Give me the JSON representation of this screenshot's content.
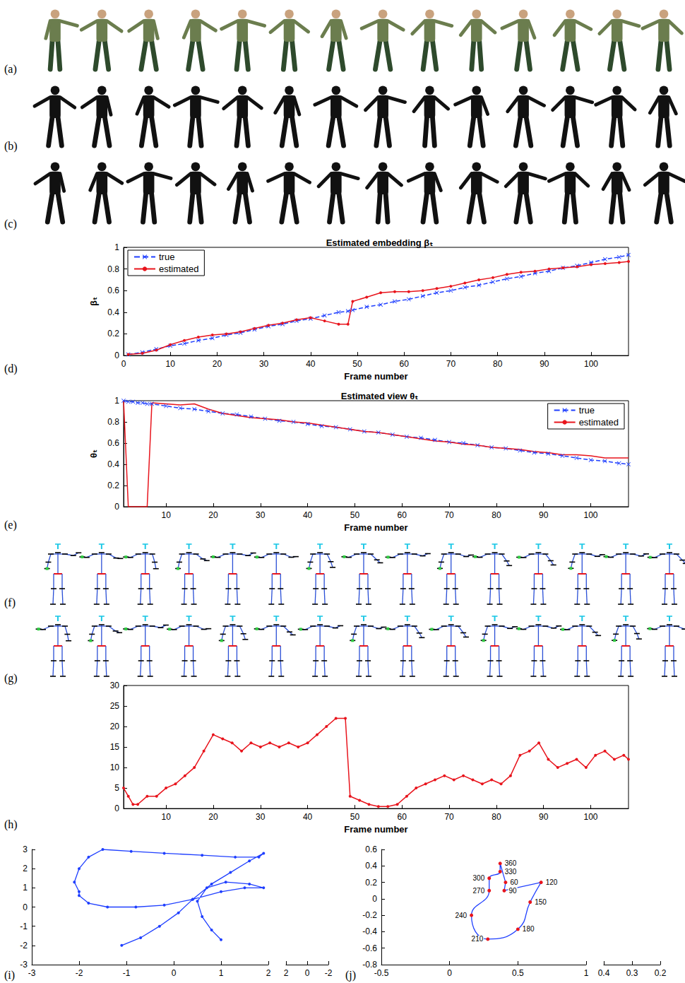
{
  "figure": {
    "image_rows": [
      {
        "panel_label": "(a)",
        "kind": "color",
        "frames": 14
      },
      {
        "panel_label": "(b)",
        "kind": "silhouette",
        "frames": 14
      },
      {
        "panel_label": "(c)",
        "kind": "silhouette",
        "frames": 14
      }
    ],
    "skeleton_rows": [
      {
        "panel_label": "(f)",
        "frames": 15
      },
      {
        "panel_label": "(g)",
        "frames": 15
      }
    ]
  },
  "chart_data": [
    {
      "type": "line",
      "panel_label": "(d)",
      "title": "Estimated embedding βₜ",
      "x_label": "Frame number",
      "y_label": "βₜ",
      "x": [
        1,
        4,
        7,
        10,
        13,
        16,
        19,
        22,
        25,
        28,
        31,
        34,
        37,
        40,
        43,
        46,
        48,
        49,
        52,
        55,
        58,
        61,
        64,
        67,
        70,
        73,
        76,
        79,
        82,
        85,
        88,
        91,
        94,
        97,
        100,
        103,
        106,
        108
      ],
      "series": [
        {
          "name": "true",
          "color": "#1f3fff",
          "line_style": "dashed",
          "marker": "x",
          "values": [
            0.01,
            0.03,
            0.06,
            0.09,
            0.11,
            0.14,
            0.16,
            0.19,
            0.21,
            0.24,
            0.27,
            0.29,
            0.32,
            0.34,
            0.37,
            0.4,
            0.41,
            0.42,
            0.45,
            0.47,
            0.5,
            0.52,
            0.55,
            0.58,
            0.6,
            0.63,
            0.65,
            0.68,
            0.71,
            0.73,
            0.76,
            0.78,
            0.81,
            0.83,
            0.86,
            0.89,
            0.91,
            0.93
          ]
        },
        {
          "name": "estimated",
          "color": "#e8141c",
          "line_style": "solid",
          "marker": "circle",
          "values": [
            0.01,
            0.02,
            0.05,
            0.1,
            0.14,
            0.17,
            0.19,
            0.2,
            0.22,
            0.25,
            0.28,
            0.3,
            0.33,
            0.35,
            0.32,
            0.29,
            0.29,
            0.5,
            0.54,
            0.58,
            0.59,
            0.59,
            0.6,
            0.62,
            0.64,
            0.67,
            0.7,
            0.72,
            0.75,
            0.77,
            0.78,
            0.8,
            0.81,
            0.82,
            0.84,
            0.85,
            0.86,
            0.87
          ]
        }
      ],
      "xlim": [
        0,
        108
      ],
      "xticks": [
        0,
        10,
        20,
        30,
        40,
        50,
        60,
        70,
        80,
        90,
        100
      ],
      "ylim": [
        0,
        1
      ],
      "yticks": [
        0,
        0.2,
        0.4,
        0.6,
        0.8,
        1
      ],
      "legend": "upper left",
      "grid": false
    },
    {
      "type": "line",
      "panel_label": "(e)",
      "title": "Estimated view θₜ",
      "x_label": "Frame number",
      "y_label": "θₜ",
      "x": [
        1,
        2,
        3,
        4,
        5,
        6,
        7,
        10,
        13,
        16,
        19,
        22,
        25,
        28,
        31,
        34,
        37,
        40,
        43,
        46,
        49,
        52,
        55,
        58,
        61,
        64,
        67,
        70,
        73,
        76,
        79,
        82,
        85,
        88,
        91,
        94,
        97,
        100,
        103,
        106,
        108
      ],
      "series": [
        {
          "name": "true",
          "color": "#1f3fff",
          "line_style": "dashed",
          "marker": "x",
          "values": [
            1.0,
            0.99,
            0.99,
            0.98,
            0.98,
            0.97,
            0.97,
            0.95,
            0.93,
            0.92,
            0.9,
            0.88,
            0.87,
            0.85,
            0.83,
            0.81,
            0.8,
            0.78,
            0.76,
            0.75,
            0.73,
            0.71,
            0.7,
            0.68,
            0.66,
            0.65,
            0.63,
            0.61,
            0.6,
            0.58,
            0.56,
            0.55,
            0.53,
            0.51,
            0.5,
            0.48,
            0.46,
            0.44,
            0.43,
            0.41,
            0.4
          ]
        },
        {
          "name": "estimated",
          "color": "#e8141c",
          "line_style": "solid",
          "marker": "none",
          "values": [
            1.0,
            0.0,
            0.0,
            0.0,
            0.0,
            0.0,
            0.98,
            0.97,
            0.96,
            0.97,
            0.92,
            0.88,
            0.86,
            0.84,
            0.83,
            0.82,
            0.8,
            0.79,
            0.77,
            0.75,
            0.73,
            0.71,
            0.7,
            0.68,
            0.66,
            0.64,
            0.62,
            0.61,
            0.59,
            0.58,
            0.56,
            0.55,
            0.54,
            0.52,
            0.51,
            0.49,
            0.49,
            0.48,
            0.46,
            0.46,
            0.46
          ]
        }
      ],
      "xlim": [
        1,
        108
      ],
      "xticks": [
        10,
        20,
        30,
        40,
        50,
        60,
        70,
        80,
        90,
        100
      ],
      "ylim": [
        0,
        1
      ],
      "yticks": [
        0,
        0.2,
        0.4,
        0.6,
        0.8,
        1
      ],
      "legend": "upper right",
      "grid": false
    },
    {
      "type": "line",
      "panel_label": "(h)",
      "x_label": "Frame number",
      "x": [
        1,
        2,
        3,
        4,
        6,
        8,
        10,
        12,
        14,
        16,
        18,
        20,
        22,
        24,
        26,
        28,
        30,
        32,
        34,
        36,
        38,
        40,
        42,
        44,
        46,
        48,
        49,
        51,
        53,
        55,
        57,
        59,
        61,
        63,
        65,
        67,
        69,
        71,
        73,
        75,
        77,
        79,
        81,
        83,
        85,
        87,
        89,
        91,
        93,
        95,
        97,
        99,
        101,
        103,
        105,
        107,
        108
      ],
      "series": [
        {
          "color": "#e8141c",
          "line_style": "solid",
          "marker": "circle",
          "values": [
            5,
            3,
            1,
            1,
            3,
            3,
            5,
            6,
            8,
            10,
            14,
            18,
            17,
            16,
            14,
            16,
            15,
            16,
            15,
            16,
            15,
            16,
            18,
            20,
            22,
            22,
            3,
            2,
            1,
            0.5,
            0.5,
            1,
            3,
            5,
            6,
            7,
            8,
            7,
            8,
            7,
            6,
            7,
            6,
            8,
            13,
            14,
            16,
            12,
            10,
            11,
            12,
            10,
            13,
            14,
            12,
            13,
            12
          ]
        }
      ],
      "xlim": [
        1,
        108
      ],
      "xticks": [
        10,
        20,
        30,
        40,
        50,
        60,
        70,
        80,
        90,
        100
      ],
      "ylim": [
        0,
        30
      ],
      "yticks": [
        0,
        5,
        10,
        15,
        20,
        25,
        30
      ],
      "grid": false
    },
    {
      "type": "line3d",
      "panel_label": "(i)",
      "series": [
        {
          "color": "#1f3fff",
          "marker": "circle",
          "line_style": "solid",
          "x": [
            -1.1,
            -0.7,
            -0.3,
            0.1,
            0.4,
            0.8,
            1.2,
            1.6,
            1.9,
            1.8,
            1.3,
            0.6,
            -0.2,
            -0.9,
            -1.5,
            -1.8,
            -2.0,
            -2.1,
            -2.0,
            -2.0,
            -1.8,
            -1.4,
            -0.8,
            -0.2,
            0.4,
            1.0,
            1.5,
            1.9,
            1.6,
            1.1,
            0.7,
            0.5,
            0.6,
            0.8,
            1.0
          ],
          "values": [
            -2.0,
            -1.6,
            -1.0,
            -0.3,
            0.4,
            1.2,
            1.8,
            2.4,
            2.8,
            2.6,
            2.6,
            2.7,
            2.8,
            2.9,
            3.0,
            2.6,
            2.0,
            1.3,
            0.8,
            0.6,
            0.2,
            0.0,
            0.0,
            0.1,
            0.4,
            0.8,
            1.0,
            1.0,
            1.2,
            1.3,
            1.0,
            0.3,
            -0.5,
            -1.2,
            -1.7
          ]
        }
      ],
      "xlim": [
        -3,
        2
      ],
      "xticks": [
        -3,
        -2,
        -1,
        0,
        1,
        2
      ],
      "ylim": [
        -3,
        3
      ],
      "yticks": [
        -3,
        -2,
        -1,
        0,
        1,
        2,
        3
      ],
      "zlim": [
        -2,
        2
      ],
      "zticks": [
        -2,
        0,
        2
      ],
      "grid": false
    },
    {
      "type": "line3d",
      "panel_label": "(j)",
      "series": [
        {
          "color": "#1f3fff",
          "marker": "circle",
          "line_style": "solid",
          "x": [
            0.41,
            0.4,
            0.67,
            0.59,
            0.5,
            0.28,
            0.16,
            0.29,
            0.29,
            0.37,
            0.37
          ],
          "values": [
            0.2,
            0.1,
            0.2,
            -0.04,
            -0.37,
            -0.49,
            -0.2,
            0.1,
            0.25,
            0.33,
            0.43
          ],
          "labels": [
            60,
            90,
            120,
            150,
            180,
            210,
            240,
            270,
            300,
            330,
            360
          ]
        }
      ],
      "xlim": [
        -0.5,
        1
      ],
      "xticks": [
        -0.5,
        0,
        0.5,
        1
      ],
      "ylim": [
        -0.8,
        0.6
      ],
      "yticks": [
        -0.8,
        -0.6,
        -0.4,
        -0.2,
        0,
        0.2,
        0.4,
        0.6
      ],
      "zlim": [
        0.2,
        0.4
      ],
      "zticks": [
        0.2,
        0.3,
        0.4
      ],
      "grid": false
    }
  ]
}
